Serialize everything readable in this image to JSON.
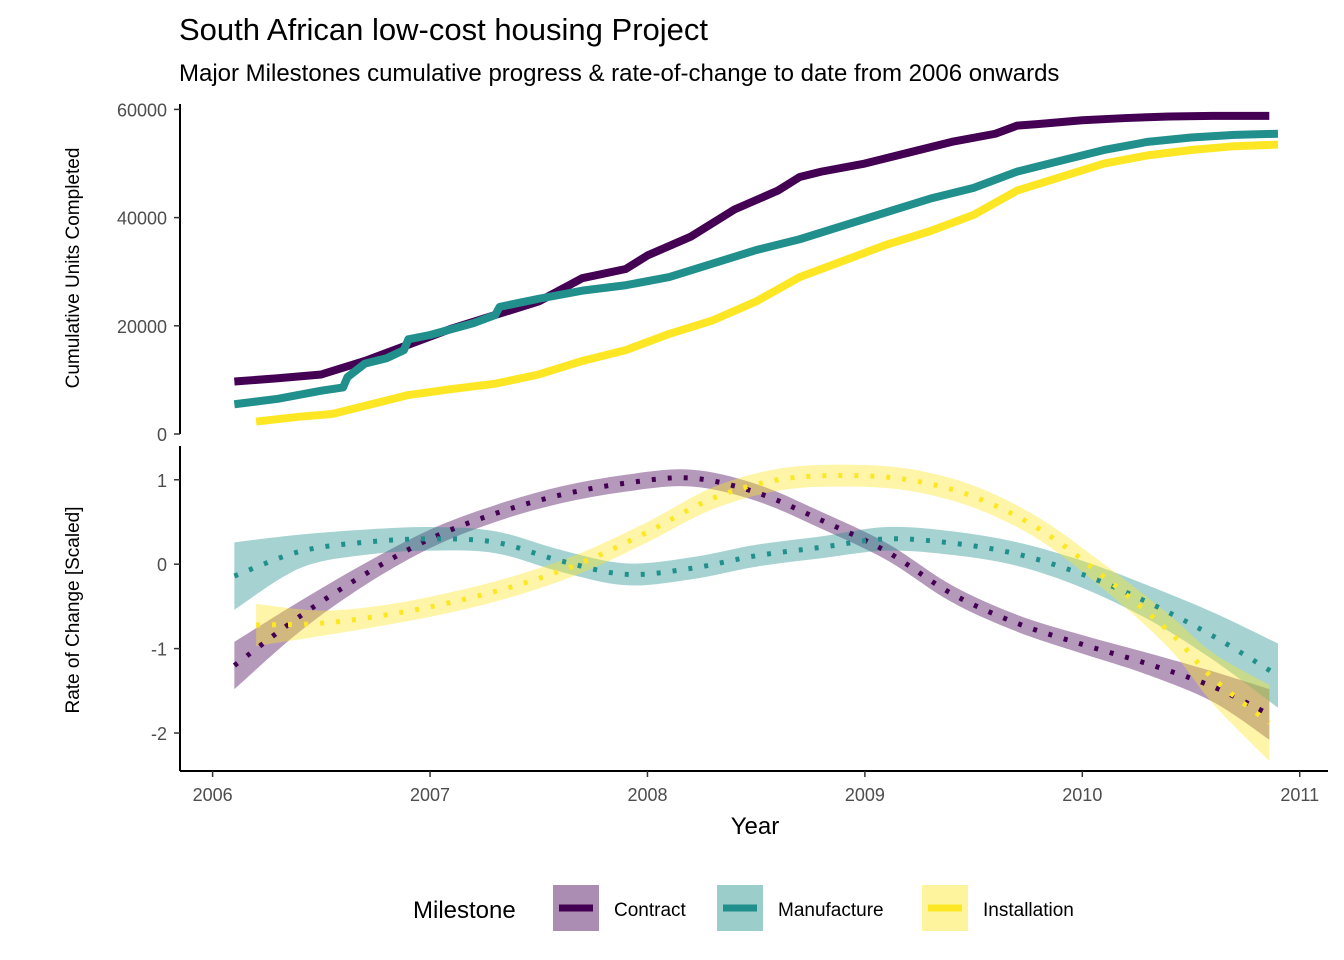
{
  "chart_data": {
    "title": "South African low-cost housing Project",
    "subtitle": "Major Milestones cumulative progress & rate-of-change to date from 2006 onwards",
    "xlabel": "Year",
    "xlim": [
      2005.85,
      2011.13
    ],
    "xticks": [
      2006,
      2007,
      2008,
      2009,
      2010,
      2011
    ],
    "legend": {
      "title": "Milestone",
      "position": "bottom"
    },
    "colors": {
      "Contract": "#440154",
      "Manufacture": "#21908C",
      "Installation": "#FDE725"
    },
    "panels": [
      {
        "type": "line",
        "ylabel": "Cumulative Units Completed",
        "ylim": [
          0,
          61000
        ],
        "yticks": [
          0,
          20000,
          40000,
          60000
        ],
        "series": [
          {
            "name": "Contract",
            "x": [
              2006.1,
              2006.3,
              2006.5,
              2006.7,
              2006.9,
              2007.1,
              2007.3,
              2007.5,
              2007.7,
              2007.9,
              2008.0,
              2008.2,
              2008.4,
              2008.6,
              2008.7,
              2008.8,
              2009.0,
              2009.2,
              2009.4,
              2009.6,
              2009.7,
              2009.8,
              2010.0,
              2010.2,
              2010.4,
              2010.6,
              2010.86
            ],
            "y": [
              9700,
              10300,
              11000,
              13500,
              16500,
              19500,
              22000,
              24500,
              28800,
              30500,
              33000,
              36500,
              41500,
              45000,
              47500,
              48500,
              50000,
              52000,
              54000,
              55500,
              57000,
              57300,
              58000,
              58400,
              58700,
              58800,
              58800
            ]
          },
          {
            "name": "Manufacture",
            "x": [
              2006.1,
              2006.3,
              2006.5,
              2006.6,
              2006.62,
              2006.7,
              2006.8,
              2006.88,
              2006.9,
              2007.0,
              2007.2,
              2007.3,
              2007.32,
              2007.5,
              2007.7,
              2007.9,
              2008.1,
              2008.3,
              2008.5,
              2008.7,
              2008.9,
              2009.1,
              2009.3,
              2009.5,
              2009.7,
              2009.9,
              2010.1,
              2010.3,
              2010.5,
              2010.7,
              2010.9
            ],
            "y": [
              5500,
              6500,
              8000,
              8600,
              10500,
              13000,
              14000,
              15500,
              17500,
              18300,
              20500,
              22000,
              23500,
              25000,
              26500,
              27500,
              29000,
              31500,
              34000,
              36000,
              38500,
              41000,
              43500,
              45500,
              48500,
              50500,
              52500,
              54000,
              54800,
              55300,
              55500
            ]
          },
          {
            "name": "Installation",
            "x": [
              2006.2,
              2006.4,
              2006.55,
              2006.7,
              2006.9,
              2007.1,
              2007.3,
              2007.5,
              2007.7,
              2007.9,
              2008.1,
              2008.3,
              2008.5,
              2008.7,
              2008.9,
              2009.1,
              2009.3,
              2009.5,
              2009.7,
              2009.9,
              2010.1,
              2010.3,
              2010.5,
              2010.7,
              2010.9
            ],
            "y": [
              2300,
              3200,
              3700,
              5200,
              7200,
              8300,
              9300,
              11000,
              13500,
              15500,
              18500,
              21000,
              24500,
              29000,
              32000,
              35000,
              37500,
              40500,
              45000,
              47500,
              50000,
              51500,
              52500,
              53200,
              53500
            ]
          }
        ]
      },
      {
        "type": "line",
        "ylabel": "Rate of Change [Scaled]",
        "ylim": [
          -2.45,
          1.4
        ],
        "yticks": [
          -2,
          -1,
          0,
          1
        ],
        "series": [
          {
            "name": "Contract",
            "x": [
              2006.1,
              2006.4,
              2006.7,
              2007.0,
              2007.3,
              2007.6,
              2007.9,
              2008.2,
              2008.5,
              2008.8,
              2009.1,
              2009.4,
              2009.7,
              2010.0,
              2010.3,
              2010.6,
              2010.86
            ],
            "y": [
              -1.2,
              -0.62,
              -0.12,
              0.3,
              0.6,
              0.82,
              0.96,
              1.02,
              0.85,
              0.52,
              0.15,
              -0.35,
              -0.7,
              -0.95,
              -1.18,
              -1.45,
              -1.78
            ],
            "band": [
              0.28,
              0.18,
              0.13,
              0.11,
              0.1,
              0.1,
              0.1,
              0.1,
              0.1,
              0.1,
              0.1,
              0.1,
              0.1,
              0.11,
              0.13,
              0.18,
              0.3
            ]
          },
          {
            "name": "Manufacture",
            "x": [
              2006.1,
              2006.4,
              2006.7,
              2007.0,
              2007.3,
              2007.6,
              2007.9,
              2008.2,
              2008.5,
              2008.8,
              2009.1,
              2009.4,
              2009.7,
              2010.0,
              2010.3,
              2010.6,
              2010.9
            ],
            "y": [
              -0.14,
              0.15,
              0.26,
              0.3,
              0.26,
              0.04,
              -0.12,
              -0.05,
              0.1,
              0.2,
              0.3,
              0.25,
              0.12,
              -0.12,
              -0.45,
              -0.85,
              -1.32
            ],
            "band": [
              0.4,
              0.2,
              0.15,
              0.14,
              0.13,
              0.13,
              0.13,
              0.13,
              0.13,
              0.13,
              0.14,
              0.14,
              0.14,
              0.16,
              0.2,
              0.28,
              0.38
            ]
          },
          {
            "name": "Installation",
            "x": [
              2006.2,
              2006.5,
              2006.8,
              2007.1,
              2007.4,
              2007.7,
              2008.0,
              2008.3,
              2008.6,
              2008.9,
              2009.2,
              2009.5,
              2009.8,
              2010.1,
              2010.4,
              2010.6,
              2010.86
            ],
            "y": [
              -0.72,
              -0.7,
              -0.6,
              -0.45,
              -0.25,
              0.02,
              0.38,
              0.78,
              1.0,
              1.05,
              1.0,
              0.8,
              0.42,
              -0.15,
              -0.8,
              -1.35,
              -1.88
            ],
            "band": [
              0.25,
              0.15,
              0.12,
              0.12,
              0.12,
              0.12,
              0.12,
              0.13,
              0.13,
              0.13,
              0.13,
              0.13,
              0.13,
              0.15,
              0.2,
              0.3,
              0.45
            ]
          }
        ]
      }
    ]
  }
}
